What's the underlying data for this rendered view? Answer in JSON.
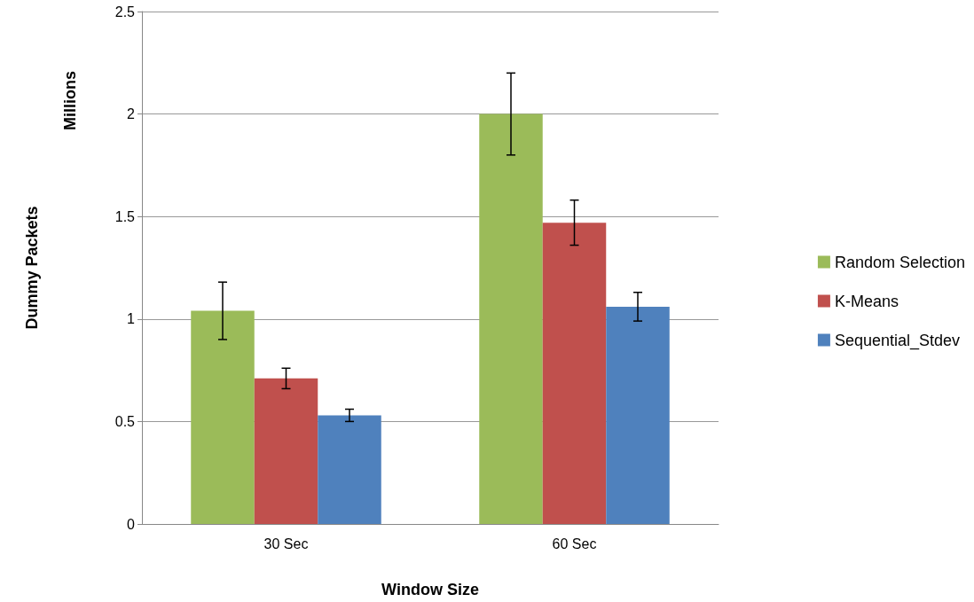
{
  "chart_data": {
    "type": "bar",
    "xlabel": "Window Size",
    "ylabel": "Dummy Packets",
    "annotations": [
      "Millions"
    ],
    "categories": [
      "30 Sec",
      "60 Sec"
    ],
    "series": [
      {
        "name": "Random Selection",
        "color": "#9bbb59",
        "values": [
          1.04,
          2.0
        ],
        "errors": [
          0.14,
          0.2
        ]
      },
      {
        "name": "K-Means",
        "color": "#c0504d",
        "values": [
          0.71,
          1.47
        ],
        "errors": [
          0.05,
          0.11
        ]
      },
      {
        "name": "Sequential_Stdev",
        "color": "#4f81bd",
        "values": [
          0.53,
          1.06
        ],
        "errors": [
          0.03,
          0.07
        ]
      }
    ],
    "ylim": [
      0,
      2.5
    ],
    "yticks": [
      0,
      0.5,
      1,
      1.5,
      2,
      2.5
    ],
    "grid": "y",
    "legend": "right"
  }
}
